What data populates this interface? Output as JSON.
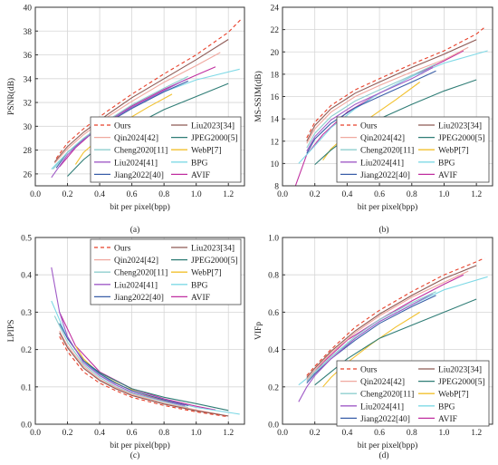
{
  "legend_entries": [
    {
      "name": "Ours",
      "color": "#e8402a",
      "dash": "4,3"
    },
    {
      "name": "Liu2023[34]",
      "color": "#8e5a55"
    },
    {
      "name": "Qin2024[42]",
      "color": "#f0a9a0"
    },
    {
      "name": "JPEG2000[5]",
      "color": "#2f7d76"
    },
    {
      "name": "Cheng2020[11]",
      "color": "#8fcfcf"
    },
    {
      "name": "WebP[7]",
      "color": "#f2c12e"
    },
    {
      "name": "Liu2024[41]",
      "color": "#a05bc7"
    },
    {
      "name": "BPG",
      "color": "#7fd9e6"
    },
    {
      "name": "Jiang2022[40]",
      "color": "#3a5fa8"
    },
    {
      "name": "AVIF",
      "color": "#c02fa0"
    }
  ],
  "chart_data": [
    {
      "type": "line",
      "label": "(a)",
      "xlabel": "bit per pixel(bpp)",
      "ylabel": "PSNR(dB)",
      "xlim": [
        0,
        1.3
      ],
      "ylim": [
        25,
        40
      ],
      "xticks": [
        0.0,
        0.2,
        0.4,
        0.6,
        0.8,
        1.0,
        1.2
      ],
      "xtick_labels": [
        "0.0",
        "0.2",
        "0.4",
        "0.6",
        "0.8",
        "1.0",
        "1.2"
      ],
      "yticks": [
        26,
        28,
        30,
        32,
        34,
        36,
        38,
        40
      ],
      "ytick_labels": [
        "26",
        "28",
        "30",
        "32",
        "34",
        "36",
        "38",
        "40"
      ],
      "grid": true,
      "legend_position": "bottom-right",
      "series": [
        {
          "name": "Ours",
          "x": [
            0.13,
            0.2,
            0.3,
            0.45,
            0.6,
            0.8,
            1.0,
            1.2,
            1.28
          ],
          "y": [
            27.3,
            28.6,
            29.8,
            31.3,
            32.7,
            34.4,
            36.0,
            37.9,
            39.0
          ]
        },
        {
          "name": "Liu2023[34]",
          "x": [
            0.12,
            0.2,
            0.3,
            0.45,
            0.6,
            0.8,
            1.0,
            1.2
          ],
          "y": [
            27.0,
            28.3,
            29.5,
            31.0,
            32.4,
            34.0,
            35.6,
            37.3
          ]
        },
        {
          "name": "Qin2024[42]",
          "x": [
            0.12,
            0.2,
            0.3,
            0.45,
            0.6,
            0.8,
            1.0,
            1.15
          ],
          "y": [
            26.9,
            28.1,
            29.3,
            30.8,
            32.1,
            33.7,
            35.1,
            36.2
          ]
        },
        {
          "name": "Cheng2020[11]",
          "x": [
            0.11,
            0.2,
            0.3,
            0.45,
            0.6,
            0.8,
            0.95
          ],
          "y": [
            26.4,
            27.8,
            29.0,
            30.5,
            31.8,
            33.2,
            34.2
          ]
        },
        {
          "name": "Liu2024[41]",
          "x": [
            0.1,
            0.2,
            0.3,
            0.45,
            0.6,
            0.8,
            0.93
          ],
          "y": [
            25.7,
            27.6,
            28.9,
            30.4,
            31.6,
            33.0,
            33.9
          ]
        },
        {
          "name": "Jiang2022[40]",
          "x": [
            0.13,
            0.2,
            0.3,
            0.45,
            0.6,
            0.8,
            0.95
          ],
          "y": [
            26.5,
            27.8,
            28.9,
            30.3,
            31.5,
            32.9,
            33.8
          ]
        },
        {
          "name": "JPEG2000[5]",
          "x": [
            0.2,
            0.3,
            0.4,
            0.6,
            0.8,
            1.0,
            1.2
          ],
          "y": [
            25.8,
            27.2,
            28.3,
            30.0,
            31.4,
            32.5,
            33.6
          ]
        },
        {
          "name": "WebP[7]",
          "x": [
            0.25,
            0.3,
            0.4,
            0.55,
            0.7,
            0.85
          ],
          "y": [
            26.8,
            27.8,
            29.0,
            30.4,
            31.6,
            32.7
          ]
        },
        {
          "name": "BPG",
          "x": [
            0.1,
            0.2,
            0.3,
            0.45,
            0.6,
            0.8,
            1.0,
            1.27
          ],
          "y": [
            26.4,
            27.8,
            29.0,
            30.4,
            31.6,
            32.9,
            33.9,
            34.8
          ]
        },
        {
          "name": "AVIF",
          "x": [
            0.15,
            0.25,
            0.4,
            0.6,
            0.8,
            1.0,
            1.12
          ],
          "y": [
            26.6,
            28.2,
            30.0,
            31.7,
            33.1,
            34.3,
            35.0
          ]
        }
      ]
    },
    {
      "type": "line",
      "label": "(b)",
      "xlabel": "bit per pixel(bpp)",
      "ylabel": "MS-SSIM(dB)",
      "xlim": [
        0,
        1.3
      ],
      "ylim": [
        8,
        24
      ],
      "xticks": [
        0.0,
        0.2,
        0.4,
        0.6,
        0.8,
        1.0,
        1.2
      ],
      "xtick_labels": [
        "0.0",
        "0.2",
        "0.4",
        "0.6",
        "0.8",
        "1.0",
        "1.2"
      ],
      "yticks": [
        8,
        10,
        12,
        14,
        16,
        18,
        20,
        22,
        24
      ],
      "ytick_labels": [
        "8",
        "10",
        "12",
        "14",
        "16",
        "18",
        "20",
        "22",
        "24"
      ],
      "grid": true,
      "legend_position": "bottom-right",
      "series": [
        {
          "name": "Ours",
          "x": [
            0.15,
            0.2,
            0.3,
            0.45,
            0.6,
            0.8,
            1.0,
            1.2,
            1.25
          ],
          "y": [
            12.3,
            13.7,
            15.2,
            16.6,
            17.6,
            18.9,
            20.1,
            21.6,
            22.2
          ]
        },
        {
          "name": "Liu2023[34]",
          "x": [
            0.15,
            0.2,
            0.3,
            0.45,
            0.6,
            0.8,
            1.0,
            1.2
          ],
          "y": [
            12.0,
            13.4,
            14.9,
            16.3,
            17.3,
            18.6,
            19.8,
            21.1
          ]
        },
        {
          "name": "Qin2024[42]",
          "x": [
            0.15,
            0.2,
            0.3,
            0.45,
            0.6,
            0.8,
            1.0,
            1.15
          ],
          "y": [
            11.8,
            13.1,
            14.6,
            16.0,
            17.0,
            18.2,
            19.3,
            20.4
          ]
        },
        {
          "name": "Cheng2020[11]",
          "x": [
            0.15,
            0.2,
            0.3,
            0.45,
            0.6,
            0.8,
            0.95
          ],
          "y": [
            11.4,
            12.7,
            14.2,
            15.6,
            16.6,
            17.9,
            18.9
          ]
        },
        {
          "name": "Liu2024[41]",
          "x": [
            0.15,
            0.2,
            0.3,
            0.45,
            0.6,
            0.8,
            0.93
          ],
          "y": [
            11.1,
            12.4,
            13.9,
            15.3,
            16.3,
            17.6,
            18.6
          ]
        },
        {
          "name": "Jiang2022[40]",
          "x": [
            0.15,
            0.2,
            0.3,
            0.45,
            0.6,
            0.8,
            0.95
          ],
          "y": [
            10.9,
            12.2,
            13.6,
            15.0,
            16.0,
            17.3,
            18.3
          ]
        },
        {
          "name": "JPEG2000[5]",
          "x": [
            0.2,
            0.3,
            0.4,
            0.6,
            0.8,
            1.0,
            1.2
          ],
          "y": [
            9.9,
            11.2,
            12.3,
            14.0,
            15.3,
            16.5,
            17.5
          ]
        },
        {
          "name": "WebP[7]",
          "x": [
            0.25,
            0.3,
            0.4,
            0.55,
            0.7,
            0.85
          ],
          "y": [
            10.3,
            11.3,
            12.6,
            14.2,
            15.7,
            17.3
          ]
        },
        {
          "name": "BPG",
          "x": [
            0.1,
            0.2,
            0.3,
            0.45,
            0.6,
            0.8,
            1.0,
            1.27
          ],
          "y": [
            10.0,
            11.6,
            13.2,
            14.9,
            16.3,
            17.8,
            19.0,
            20.1
          ]
        },
        {
          "name": "AVIF",
          "x": [
            0.08,
            0.15,
            0.25,
            0.4,
            0.6,
            0.8,
            1.0,
            1.12
          ],
          "y": [
            8.0,
            10.8,
            12.6,
            14.6,
            16.3,
            17.8,
            19.2,
            20.1
          ]
        }
      ]
    },
    {
      "type": "line",
      "label": "(c)",
      "xlabel": "bit per pixel(bpp)",
      "ylabel": "LPIPS",
      "xlim": [
        0,
        1.3
      ],
      "ylim": [
        0,
        0.5
      ],
      "xticks": [
        0.0,
        0.2,
        0.4,
        0.6,
        0.8,
        1.0,
        1.2
      ],
      "xtick_labels": [
        "0.0",
        "0.2",
        "0.4",
        "0.6",
        "0.8",
        "1.0",
        "1.2"
      ],
      "yticks": [
        0.0,
        0.1,
        0.2,
        0.3,
        0.4,
        0.5
      ],
      "ytick_labels": [
        "0.0",
        "0.1",
        "0.2",
        "0.3",
        "0.4",
        "0.5"
      ],
      "grid": true,
      "legend_position": "top-right",
      "series": [
        {
          "name": "Ours",
          "x": [
            0.15,
            0.2,
            0.3,
            0.4,
            0.5,
            0.6,
            0.8,
            1.0,
            1.2
          ],
          "y": [
            0.235,
            0.195,
            0.14,
            0.11,
            0.09,
            0.072,
            0.05,
            0.033,
            0.02
          ]
        },
        {
          "name": "Liu2023[34]",
          "x": [
            0.15,
            0.2,
            0.3,
            0.4,
            0.5,
            0.6,
            0.8,
            1.0,
            1.2
          ],
          "y": [
            0.245,
            0.205,
            0.15,
            0.117,
            0.095,
            0.077,
            0.054,
            0.036,
            0.022
          ]
        },
        {
          "name": "Qin2024[42]",
          "x": [
            0.15,
            0.2,
            0.3,
            0.4,
            0.5,
            0.6,
            0.8,
            1.0,
            1.15
          ],
          "y": [
            0.25,
            0.21,
            0.155,
            0.12,
            0.098,
            0.08,
            0.056,
            0.038,
            0.026
          ]
        },
        {
          "name": "Cheng2020[11]",
          "x": [
            0.12,
            0.2,
            0.3,
            0.4,
            0.5,
            0.6,
            0.8,
            0.95
          ],
          "y": [
            0.29,
            0.22,
            0.16,
            0.125,
            0.1,
            0.083,
            0.06,
            0.045
          ]
        },
        {
          "name": "Liu2024[41]",
          "x": [
            0.1,
            0.15,
            0.2,
            0.3,
            0.4,
            0.5,
            0.6,
            0.8,
            0.93
          ],
          "y": [
            0.42,
            0.3,
            0.235,
            0.165,
            0.13,
            0.105,
            0.086,
            0.062,
            0.05
          ]
        },
        {
          "name": "Jiang2022[40]",
          "x": [
            0.15,
            0.2,
            0.3,
            0.4,
            0.5,
            0.6,
            0.8,
            0.95
          ],
          "y": [
            0.27,
            0.23,
            0.17,
            0.135,
            0.11,
            0.09,
            0.065,
            0.05
          ]
        },
        {
          "name": "JPEG2000[5]",
          "x": [
            0.2,
            0.3,
            0.4,
            0.6,
            0.8,
            1.0,
            1.2
          ],
          "y": [
            0.23,
            0.17,
            0.138,
            0.095,
            0.072,
            0.055,
            0.037
          ]
        },
        {
          "name": "WebP[7]",
          "x": [
            0.25,
            0.3,
            0.4,
            0.55,
            0.7,
            0.85
          ],
          "y": [
            0.21,
            0.175,
            0.135,
            0.1,
            0.076,
            0.058
          ]
        },
        {
          "name": "BPG",
          "x": [
            0.1,
            0.2,
            0.3,
            0.4,
            0.6,
            0.8,
            1.0,
            1.27
          ],
          "y": [
            0.33,
            0.23,
            0.17,
            0.13,
            0.09,
            0.065,
            0.045,
            0.027
          ]
        },
        {
          "name": "AVIF",
          "x": [
            0.15,
            0.25,
            0.4,
            0.6,
            0.8,
            1.0,
            1.12
          ],
          "y": [
            0.3,
            0.21,
            0.14,
            0.095,
            0.068,
            0.048,
            0.038
          ]
        }
      ]
    },
    {
      "type": "line",
      "label": "(d)",
      "xlabel": "bit per pixel(bpp)",
      "ylabel": "VIFp",
      "xlim": [
        0,
        1.3
      ],
      "ylim": [
        0,
        1.0
      ],
      "xticks": [
        0.0,
        0.2,
        0.4,
        0.6,
        0.8,
        1.0,
        1.2
      ],
      "xtick_labels": [
        "0.0",
        "0.2",
        "0.4",
        "0.6",
        "0.8",
        "1.0",
        "1.2"
      ],
      "yticks": [
        0.0,
        0.2,
        0.4,
        0.6,
        0.8,
        1.0
      ],
      "ytick_labels": [
        "0.0",
        "0.2",
        "0.4",
        "0.6",
        "0.8",
        "1.0"
      ],
      "grid": true,
      "legend_position": "bottom-right",
      "series": [
        {
          "name": "Ours",
          "x": [
            0.15,
            0.2,
            0.3,
            0.45,
            0.6,
            0.8,
            1.0,
            1.2,
            1.25
          ],
          "y": [
            0.26,
            0.31,
            0.4,
            0.52,
            0.61,
            0.71,
            0.8,
            0.87,
            0.89
          ]
        },
        {
          "name": "Liu2023[34]",
          "x": [
            0.15,
            0.2,
            0.3,
            0.45,
            0.6,
            0.8,
            1.0,
            1.2
          ],
          "y": [
            0.25,
            0.3,
            0.39,
            0.5,
            0.59,
            0.69,
            0.78,
            0.85
          ]
        },
        {
          "name": "Qin2024[42]",
          "x": [
            0.15,
            0.2,
            0.3,
            0.45,
            0.6,
            0.8,
            1.0,
            1.15
          ],
          "y": [
            0.24,
            0.29,
            0.38,
            0.49,
            0.58,
            0.68,
            0.76,
            0.82
          ]
        },
        {
          "name": "Cheng2020[11]",
          "x": [
            0.15,
            0.2,
            0.3,
            0.45,
            0.6,
            0.8,
            0.95
          ],
          "y": [
            0.23,
            0.28,
            0.36,
            0.47,
            0.56,
            0.65,
            0.71
          ]
        },
        {
          "name": "Liu2024[41]",
          "x": [
            0.1,
            0.15,
            0.2,
            0.3,
            0.45,
            0.6,
            0.8,
            0.93
          ],
          "y": [
            0.12,
            0.2,
            0.26,
            0.35,
            0.46,
            0.55,
            0.64,
            0.7
          ]
        },
        {
          "name": "Jiang2022[40]",
          "x": [
            0.15,
            0.2,
            0.3,
            0.45,
            0.6,
            0.8,
            0.95
          ],
          "y": [
            0.22,
            0.27,
            0.35,
            0.45,
            0.54,
            0.63,
            0.69
          ]
        },
        {
          "name": "JPEG2000[5]",
          "x": [
            0.2,
            0.3,
            0.4,
            0.6,
            0.8,
            1.0,
            1.2
          ],
          "y": [
            0.21,
            0.28,
            0.35,
            0.46,
            0.53,
            0.6,
            0.67
          ]
        },
        {
          "name": "WebP[7]",
          "x": [
            0.25,
            0.3,
            0.4,
            0.55,
            0.7,
            0.85
          ],
          "y": [
            0.2,
            0.25,
            0.33,
            0.43,
            0.52,
            0.6
          ]
        },
        {
          "name": "BPG",
          "x": [
            0.1,
            0.2,
            0.3,
            0.45,
            0.6,
            0.8,
            1.0,
            1.27
          ],
          "y": [
            0.21,
            0.28,
            0.36,
            0.46,
            0.55,
            0.64,
            0.72,
            0.79
          ]
        },
        {
          "name": "AVIF",
          "x": [
            0.15,
            0.25,
            0.4,
            0.6,
            0.8,
            1.0,
            1.12
          ],
          "y": [
            0.23,
            0.33,
            0.45,
            0.56,
            0.66,
            0.75,
            0.8
          ]
        }
      ]
    }
  ]
}
